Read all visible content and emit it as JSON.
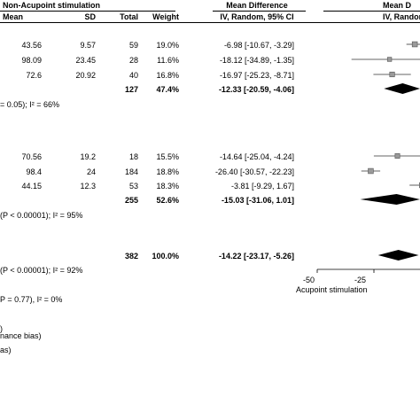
{
  "header": {
    "group_title": "Non-Acupoint stimulation",
    "md_title": "Mean Difference",
    "md_title_right": "Mean D",
    "cols": {
      "mean": "Mean",
      "sd": "SD",
      "total": "Total",
      "weight": "Weight",
      "md_ci": "IV, Random, 95% CI",
      "md_ci_right": "IV, Random"
    }
  },
  "groups": [
    {
      "rows": [
        {
          "mean": "43.56",
          "sd": "9.57",
          "total": "59",
          "weight": "19.0%",
          "md": "-6.98 [-10.67, -3.29]"
        },
        {
          "mean": "98.09",
          "sd": "23.45",
          "total": "28",
          "weight": "11.6%",
          "md": "-18.12 [-34.89, -1.35]"
        },
        {
          "mean": "72.6",
          "sd": "20.92",
          "total": "40",
          "weight": "16.8%",
          "md": "-16.97 [-25.23, -8.71]"
        }
      ],
      "subtotal": {
        "total": "127",
        "weight": "47.4%",
        "md": "-12.33 [-20.59, -4.06]"
      },
      "het": "= 0.05); I² = 66%"
    },
    {
      "rows": [
        {
          "mean": "70.56",
          "sd": "19.2",
          "total": "18",
          "weight": "15.5%",
          "md": "-14.64 [-25.04, -4.24]"
        },
        {
          "mean": "98.4",
          "sd": "24",
          "total": "184",
          "weight": "18.8%",
          "md": "-26.40 [-30.57, -22.23]"
        },
        {
          "mean": "44.15",
          "sd": "12.3",
          "total": "53",
          "weight": "18.3%",
          "md": "-3.81 [-9.29, 1.67]"
        }
      ],
      "subtotal": {
        "total": "255",
        "weight": "52.6%",
        "md": "-15.03 [-31.06, 1.01]"
      },
      "het": "(P < 0.00001); I² = 95%"
    }
  ],
  "total": {
    "total": "382",
    "weight": "100.0%",
    "md": "-14.22 [-23.17, -5.26]",
    "het": "(P < 0.00001); I² = 92%"
  },
  "subgroup_test": "P = 0.77), I² = 0%",
  "footnotes": [
    ")",
    "nance bias)",
    "as)"
  ],
  "axis": {
    "ticks": [
      "-50",
      "-25"
    ],
    "label": "Acupoint stimulation"
  },
  "chart_data": {
    "type": "forest",
    "xlim": [
      -50,
      50
    ],
    "ticks": [
      -50,
      -25,
      0
    ],
    "studies": [
      {
        "md": -6.98,
        "lo": -10.67,
        "hi": -3.29,
        "weight": 19.0
      },
      {
        "md": -18.12,
        "lo": -34.89,
        "hi": -1.35,
        "weight": 11.6
      },
      {
        "md": -16.97,
        "lo": -25.23,
        "hi": -8.71,
        "weight": 16.8
      },
      {
        "md": -14.64,
        "lo": -25.04,
        "hi": -4.24,
        "weight": 15.5
      },
      {
        "md": -26.4,
        "lo": -30.57,
        "hi": -22.23,
        "weight": 18.8
      },
      {
        "md": -3.81,
        "lo": -9.29,
        "hi": 1.67,
        "weight": 18.3
      }
    ],
    "subtotals": [
      {
        "md": -12.33,
        "lo": -20.59,
        "hi": -4.06
      },
      {
        "md": -15.03,
        "lo": -31.06,
        "hi": 1.01
      }
    ],
    "overall": {
      "md": -14.22,
      "lo": -23.17,
      "hi": -5.26
    }
  }
}
